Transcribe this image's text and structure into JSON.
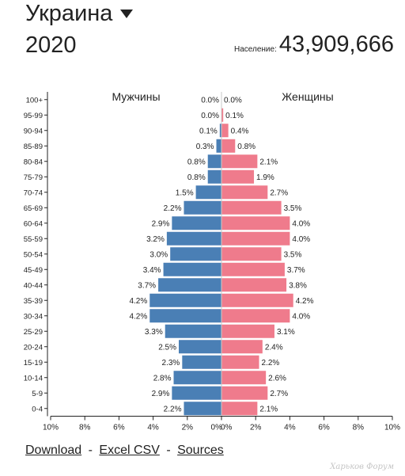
{
  "header": {
    "country": "Украина",
    "year": "2020",
    "population_label": "Население:",
    "population_value": "43,909,666"
  },
  "chart_data": {
    "type": "bar",
    "subtype": "population-pyramid",
    "categories": [
      "100+",
      "95-99",
      "90-94",
      "85-89",
      "80-84",
      "75-79",
      "70-74",
      "65-69",
      "60-64",
      "55-59",
      "50-54",
      "45-49",
      "40-44",
      "35-39",
      "30-34",
      "25-29",
      "20-24",
      "15-19",
      "10-14",
      "5-9",
      "0-4"
    ],
    "series": [
      {
        "name": "Мужчины",
        "color": "#4a7fb5",
        "values": [
          0.0,
          0.0,
          0.1,
          0.3,
          0.8,
          0.8,
          1.5,
          2.2,
          2.9,
          3.2,
          3.0,
          3.4,
          3.7,
          4.2,
          4.2,
          3.3,
          2.5,
          2.3,
          2.8,
          2.9,
          2.2
        ]
      },
      {
        "name": "Женщины",
        "color": "#ef7b8c",
        "values": [
          0.0,
          0.1,
          0.4,
          0.8,
          2.1,
          1.9,
          2.7,
          3.5,
          4.0,
          4.0,
          3.5,
          3.7,
          3.8,
          4.2,
          4.0,
          3.1,
          2.4,
          2.2,
          2.6,
          2.7,
          2.1
        ]
      }
    ],
    "value_labels": {
      "male": [
        "0.0%",
        "0.0%",
        "0.1%",
        "0.3%",
        "0.8%",
        "0.8%",
        "1.5%",
        "2.2%",
        "2.9%",
        "3.2%",
        "3.0%",
        "3.4%",
        "3.7%",
        "4.2%",
        "4.2%",
        "3.3%",
        "2.5%",
        "2.3%",
        "2.8%",
        "2.9%",
        "2.2%"
      ],
      "female": [
        "0.0%",
        "0.1%",
        "0.4%",
        "0.8%",
        "2.1%",
        "1.9%",
        "2.7%",
        "3.5%",
        "4.0%",
        "4.0%",
        "3.5%",
        "3.7%",
        "3.8%",
        "4.2%",
        "4.0%",
        "3.1%",
        "2.4%",
        "2.2%",
        "2.6%",
        "2.7%",
        "2.1%"
      ]
    },
    "x_ticks": [
      "10%",
      "8%",
      "6%",
      "4%",
      "2%",
      "0%",
      "0%",
      "2%",
      "4%",
      "6%",
      "8%",
      "10%"
    ],
    "xlim": [
      -10,
      10
    ],
    "grid": false
  },
  "footer": {
    "download": "Download",
    "excel": "Excel CSV",
    "sources": "Sources",
    "separator": "-"
  },
  "watermark": "Харьков Форум"
}
